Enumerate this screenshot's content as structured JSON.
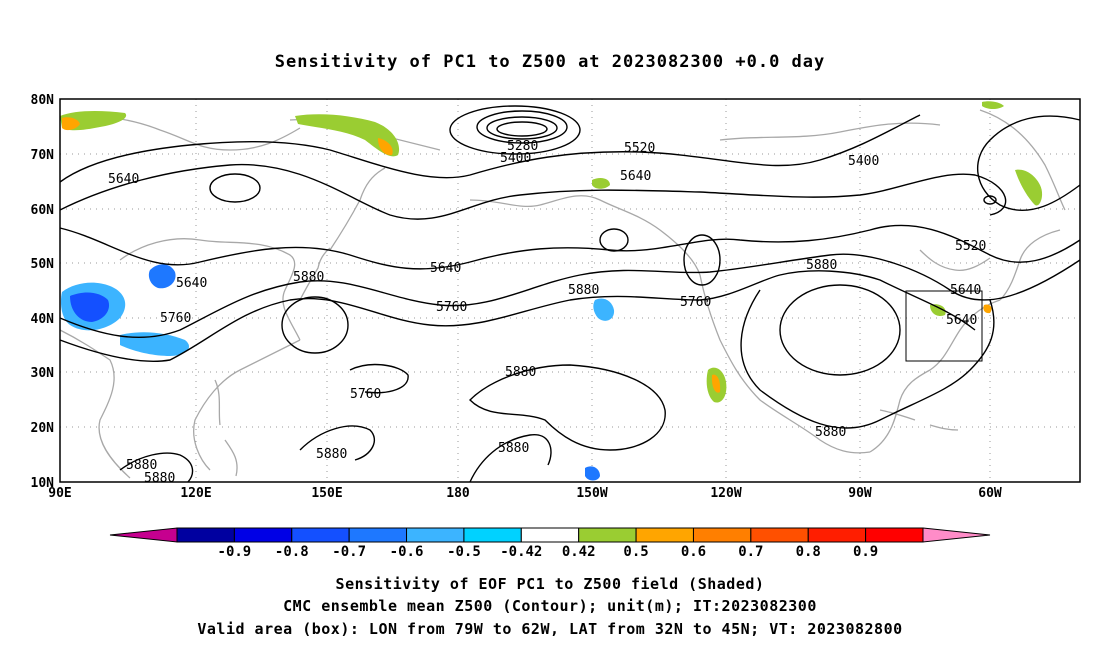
{
  "title": "Sensitivity of PC1 to Z500 at 2023082300 +0.0 day",
  "map": {
    "lat_ticks": [
      "80N",
      "70N",
      "60N",
      "50N",
      "40N",
      "30N",
      "20N",
      "10N"
    ],
    "lon_ticks": [
      "90E",
      "120E",
      "150E",
      "180",
      "150W",
      "120W",
      "90W",
      "60W"
    ],
    "grid": true,
    "valid_box": {
      "lon_from": "79W",
      "lon_to": "62W",
      "lat_from": "32N",
      "lat_to": "45N"
    },
    "contour_labels": [
      "5280",
      "5400",
      "5520",
      "5640",
      "5640",
      "5400",
      "5520",
      "5640",
      "5640",
      "5880",
      "5640",
      "5760",
      "5880",
      "5760",
      "5880",
      "5880",
      "5760",
      "5640",
      "5760",
      "5880",
      "5880",
      "5880",
      "5880",
      "5880",
      "5880"
    ]
  },
  "colorbar": {
    "labels": [
      "-0.9",
      "-0.8",
      "-0.7",
      "-0.6",
      "-0.5",
      "-0.42",
      "0.42",
      "0.5",
      "0.6",
      "0.7",
      "0.8",
      "0.9"
    ],
    "colors": [
      "#c6008f",
      "#0000a0",
      "#0000e6",
      "#1450ff",
      "#1e78ff",
      "#3cb4ff",
      "#00d2ff",
      "#ffffff",
      "#9acd32",
      "#ffa500",
      "#ff7f00",
      "#ff5000",
      "#ff1e00",
      "#ff0000",
      "#ff8cc8"
    ]
  },
  "footer": {
    "line1": "Sensitivity of EOF PC1 to Z500 field (Shaded)",
    "line2": "CMC ensemble mean Z500 (Contour); unit(m); IT:2023082300",
    "line3": "Valid area (box): LON from 79W to 62W, LAT from 32N to 45N; VT: 2023082800"
  }
}
